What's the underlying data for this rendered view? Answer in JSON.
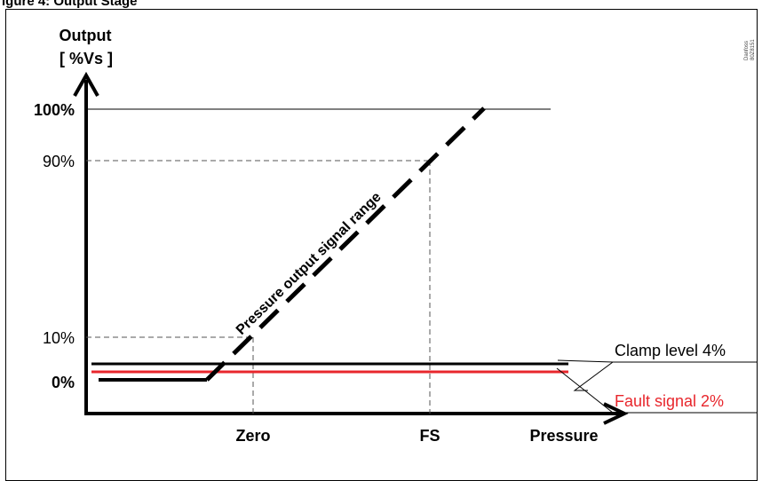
{
  "header_fragment": "igure 4: Output Stage",
  "corner_note_line1": "Danfoss",
  "corner_note_line2": "80Z8151",
  "y_axis": {
    "title_line1": "Output",
    "title_line2": "[ %Vs ]",
    "ticks": [
      "100%",
      "90%",
      "10%",
      "0%"
    ]
  },
  "x_axis": {
    "ticks": [
      "Zero",
      "FS"
    ],
    "title": "Pressure"
  },
  "annotations": {
    "signal_range": "Pressure output signal range",
    "clamp": "Clamp level 4%",
    "fault": "Fault signal 2%"
  },
  "colors": {
    "line": "#000000",
    "fault": "#e8262c",
    "guide": "#555555"
  }
}
